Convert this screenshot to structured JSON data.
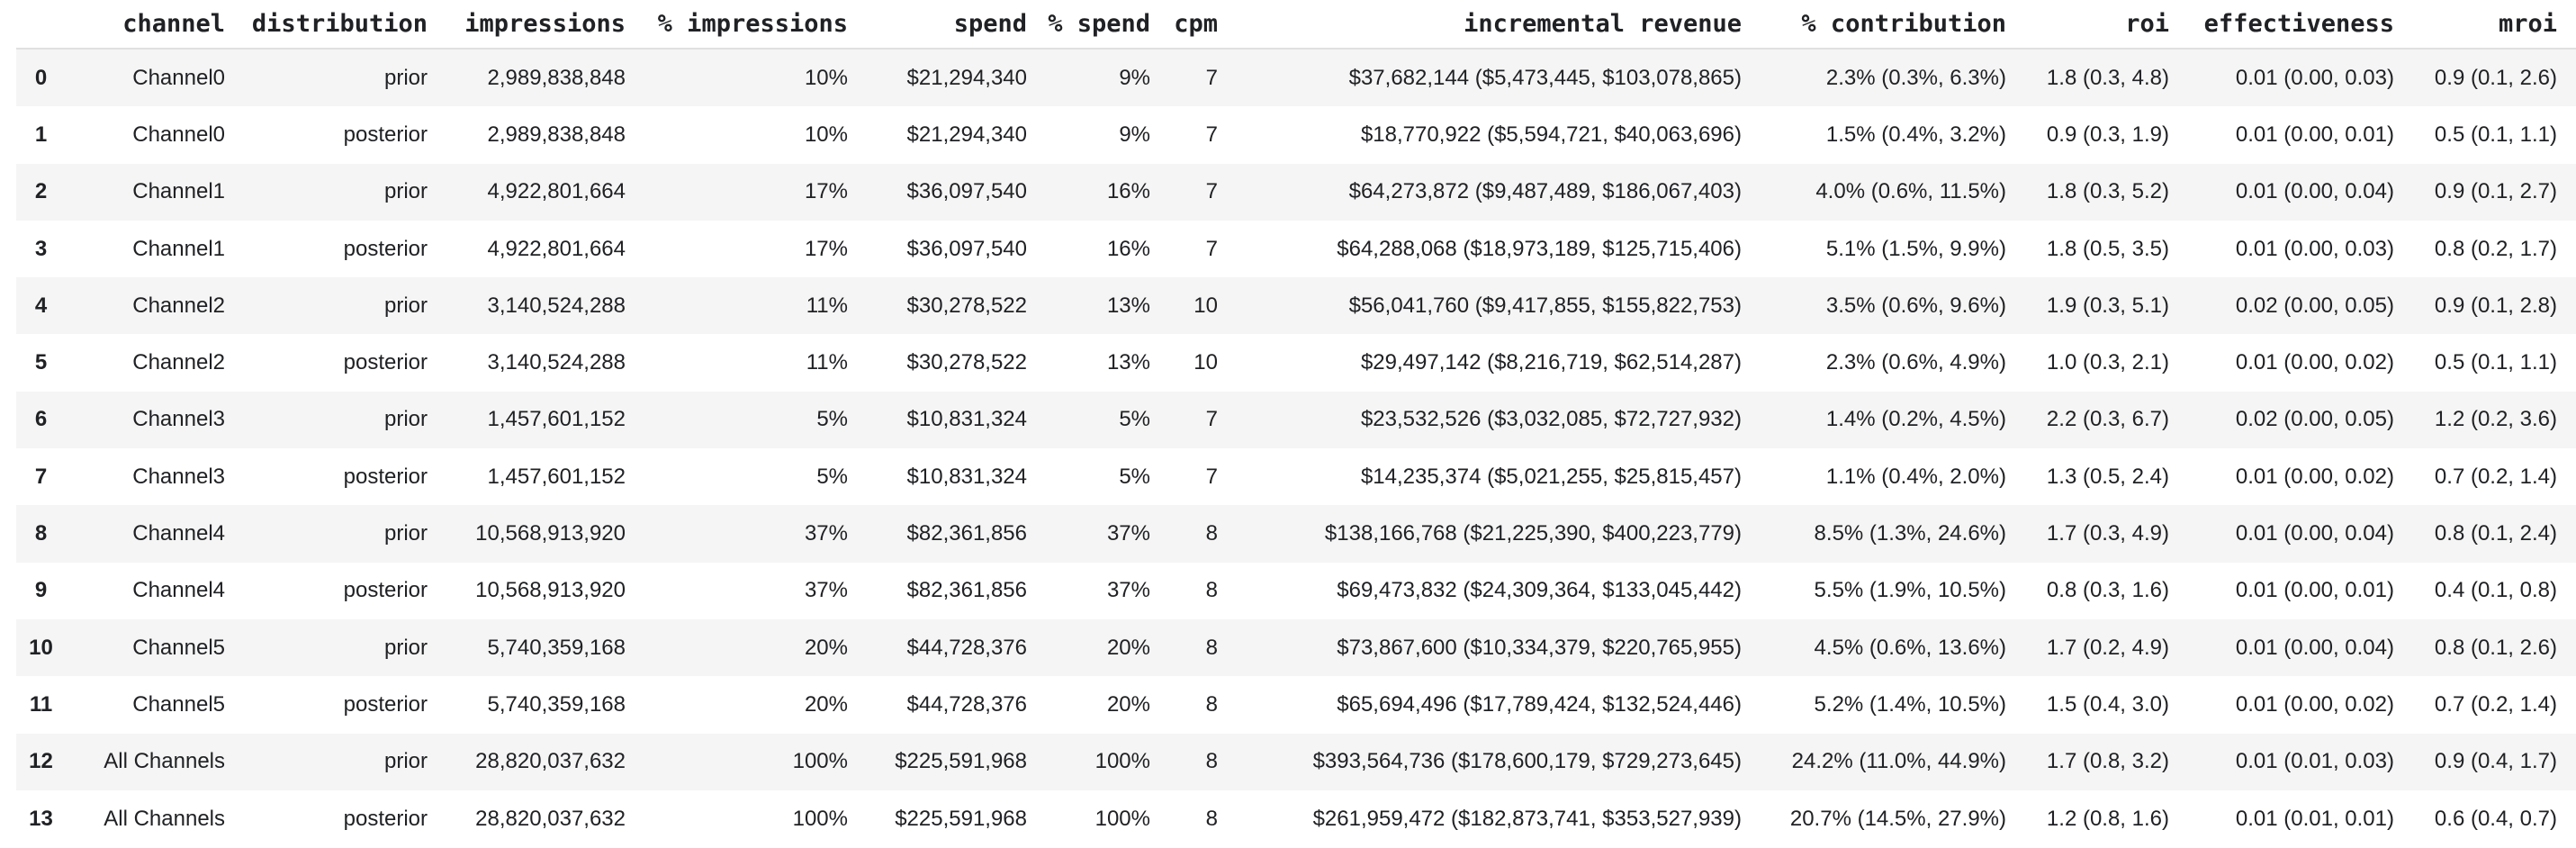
{
  "chart_data": {
    "type": "table",
    "title": "",
    "columns": [
      "",
      "channel",
      "distribution",
      "impressions",
      "% impressions",
      "spend",
      "% spend",
      "cpm",
      "incremental revenue",
      "% contribution",
      "roi",
      "effectiveness",
      "mroi"
    ],
    "rows": [
      [
        "0",
        "Channel0",
        "prior",
        "2,989,838,848",
        "10%",
        "$21,294,340",
        "9%",
        "7",
        "$37,682,144 ($5,473,445, $103,078,865)",
        "2.3% (0.3%, 6.3%)",
        "1.8 (0.3, 4.8)",
        "0.01 (0.00, 0.03)",
        "0.9 (0.1, 2.6)"
      ],
      [
        "1",
        "Channel0",
        "posterior",
        "2,989,838,848",
        "10%",
        "$21,294,340",
        "9%",
        "7",
        "$18,770,922 ($5,594,721, $40,063,696)",
        "1.5% (0.4%, 3.2%)",
        "0.9 (0.3, 1.9)",
        "0.01 (0.00, 0.01)",
        "0.5 (0.1, 1.1)"
      ],
      [
        "2",
        "Channel1",
        "prior",
        "4,922,801,664",
        "17%",
        "$36,097,540",
        "16%",
        "7",
        "$64,273,872 ($9,487,489, $186,067,403)",
        "4.0% (0.6%, 11.5%)",
        "1.8 (0.3, 5.2)",
        "0.01 (0.00, 0.04)",
        "0.9 (0.1, 2.7)"
      ],
      [
        "3",
        "Channel1",
        "posterior",
        "4,922,801,664",
        "17%",
        "$36,097,540",
        "16%",
        "7",
        "$64,288,068 ($18,973,189, $125,715,406)",
        "5.1% (1.5%, 9.9%)",
        "1.8 (0.5, 3.5)",
        "0.01 (0.00, 0.03)",
        "0.8 (0.2, 1.7)"
      ],
      [
        "4",
        "Channel2",
        "prior",
        "3,140,524,288",
        "11%",
        "$30,278,522",
        "13%",
        "10",
        "$56,041,760 ($9,417,855, $155,822,753)",
        "3.5% (0.6%, 9.6%)",
        "1.9 (0.3, 5.1)",
        "0.02 (0.00, 0.05)",
        "0.9 (0.1, 2.8)"
      ],
      [
        "5",
        "Channel2",
        "posterior",
        "3,140,524,288",
        "11%",
        "$30,278,522",
        "13%",
        "10",
        "$29,497,142 ($8,216,719, $62,514,287)",
        "2.3% (0.6%, 4.9%)",
        "1.0 (0.3, 2.1)",
        "0.01 (0.00, 0.02)",
        "0.5 (0.1, 1.1)"
      ],
      [
        "6",
        "Channel3",
        "prior",
        "1,457,601,152",
        "5%",
        "$10,831,324",
        "5%",
        "7",
        "$23,532,526 ($3,032,085, $72,727,932)",
        "1.4% (0.2%, 4.5%)",
        "2.2 (0.3, 6.7)",
        "0.02 (0.00, 0.05)",
        "1.2 (0.2, 3.6)"
      ],
      [
        "7",
        "Channel3",
        "posterior",
        "1,457,601,152",
        "5%",
        "$10,831,324",
        "5%",
        "7",
        "$14,235,374 ($5,021,255, $25,815,457)",
        "1.1% (0.4%, 2.0%)",
        "1.3 (0.5, 2.4)",
        "0.01 (0.00, 0.02)",
        "0.7 (0.2, 1.4)"
      ],
      [
        "8",
        "Channel4",
        "prior",
        "10,568,913,920",
        "37%",
        "$82,361,856",
        "37%",
        "8",
        "$138,166,768 ($21,225,390, $400,223,779)",
        "8.5% (1.3%, 24.6%)",
        "1.7 (0.3, 4.9)",
        "0.01 (0.00, 0.04)",
        "0.8 (0.1, 2.4)"
      ],
      [
        "9",
        "Channel4",
        "posterior",
        "10,568,913,920",
        "37%",
        "$82,361,856",
        "37%",
        "8",
        "$69,473,832 ($24,309,364, $133,045,442)",
        "5.5% (1.9%, 10.5%)",
        "0.8 (0.3, 1.6)",
        "0.01 (0.00, 0.01)",
        "0.4 (0.1, 0.8)"
      ],
      [
        "10",
        "Channel5",
        "prior",
        "5,740,359,168",
        "20%",
        "$44,728,376",
        "20%",
        "8",
        "$73,867,600 ($10,334,379, $220,765,955)",
        "4.5% (0.6%, 13.6%)",
        "1.7 (0.2, 4.9)",
        "0.01 (0.00, 0.04)",
        "0.8 (0.1, 2.6)"
      ],
      [
        "11",
        "Channel5",
        "posterior",
        "5,740,359,168",
        "20%",
        "$44,728,376",
        "20%",
        "8",
        "$65,694,496 ($17,789,424, $132,524,446)",
        "5.2% (1.4%, 10.5%)",
        "1.5 (0.4, 3.0)",
        "0.01 (0.00, 0.02)",
        "0.7 (0.2, 1.4)"
      ],
      [
        "12",
        "All Channels",
        "prior",
        "28,820,037,632",
        "100%",
        "$225,591,968",
        "100%",
        "8",
        "$393,564,736 ($178,600,179, $729,273,645)",
        "24.2% (11.0%, 44.9%)",
        "1.7 (0.8, 3.2)",
        "0.01 (0.01, 0.03)",
        "0.9 (0.4, 1.7)"
      ],
      [
        "13",
        "All Channels",
        "posterior",
        "28,820,037,632",
        "100%",
        "$225,591,968",
        "100%",
        "8",
        "$261,959,472 ($182,873,741, $353,527,939)",
        "20.7% (14.5%, 27.9%)",
        "1.2 (0.8, 1.6)",
        "0.01 (0.01, 0.01)",
        "0.6 (0.4, 0.7)"
      ]
    ],
    "layout": {
      "grid": false,
      "striped_rows": true,
      "header_divider": true
    }
  },
  "colors": {
    "text": "#202124",
    "row_stripe": "#f5f5f5",
    "header_divider": "#e0e0e0",
    "background": "#ffffff"
  },
  "column_keys": [
    "index",
    "channel",
    "distribution",
    "impressions",
    "pct-impressions",
    "spend",
    "pct-spend",
    "cpm",
    "incremental-revenue",
    "pct-contribution",
    "roi",
    "effectiveness",
    "mroi"
  ]
}
